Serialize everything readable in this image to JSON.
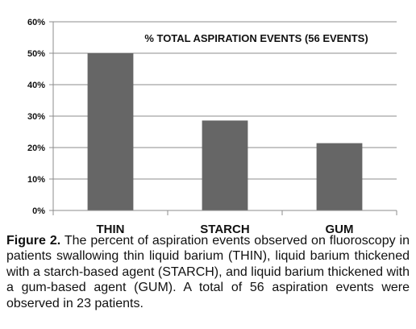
{
  "chart_data": {
    "type": "bar",
    "title": "% TOTAL ASPIRATION EVENTS (56 EVENTS)",
    "categories": [
      "THIN",
      "STARCH",
      "GUM"
    ],
    "values": [
      50,
      28.6,
      21.4
    ],
    "ylim": [
      0,
      60
    ],
    "yticks": [
      0,
      10,
      20,
      30,
      40,
      50,
      60
    ],
    "ytick_labels": [
      "0%",
      "10%",
      "20%",
      "30%",
      "40%",
      "50%",
      "60%"
    ],
    "grid": true,
    "legend": "none",
    "colors": {
      "bar": "#666666",
      "grid": "#8c8c8c",
      "axis": "#8c8c8c",
      "text": "#111111"
    }
  },
  "caption": {
    "label": "Figure 2.",
    "text": " The percent of aspiration events observed on fluoroscopy in patients swallowing thin liquid barium (THIN), liquid barium thickened with a starch-based agent (STARCH), and liquid barium thickened with a gum-based agent (GUM). A total of 56 aspiration events were observed in 23 patients."
  }
}
